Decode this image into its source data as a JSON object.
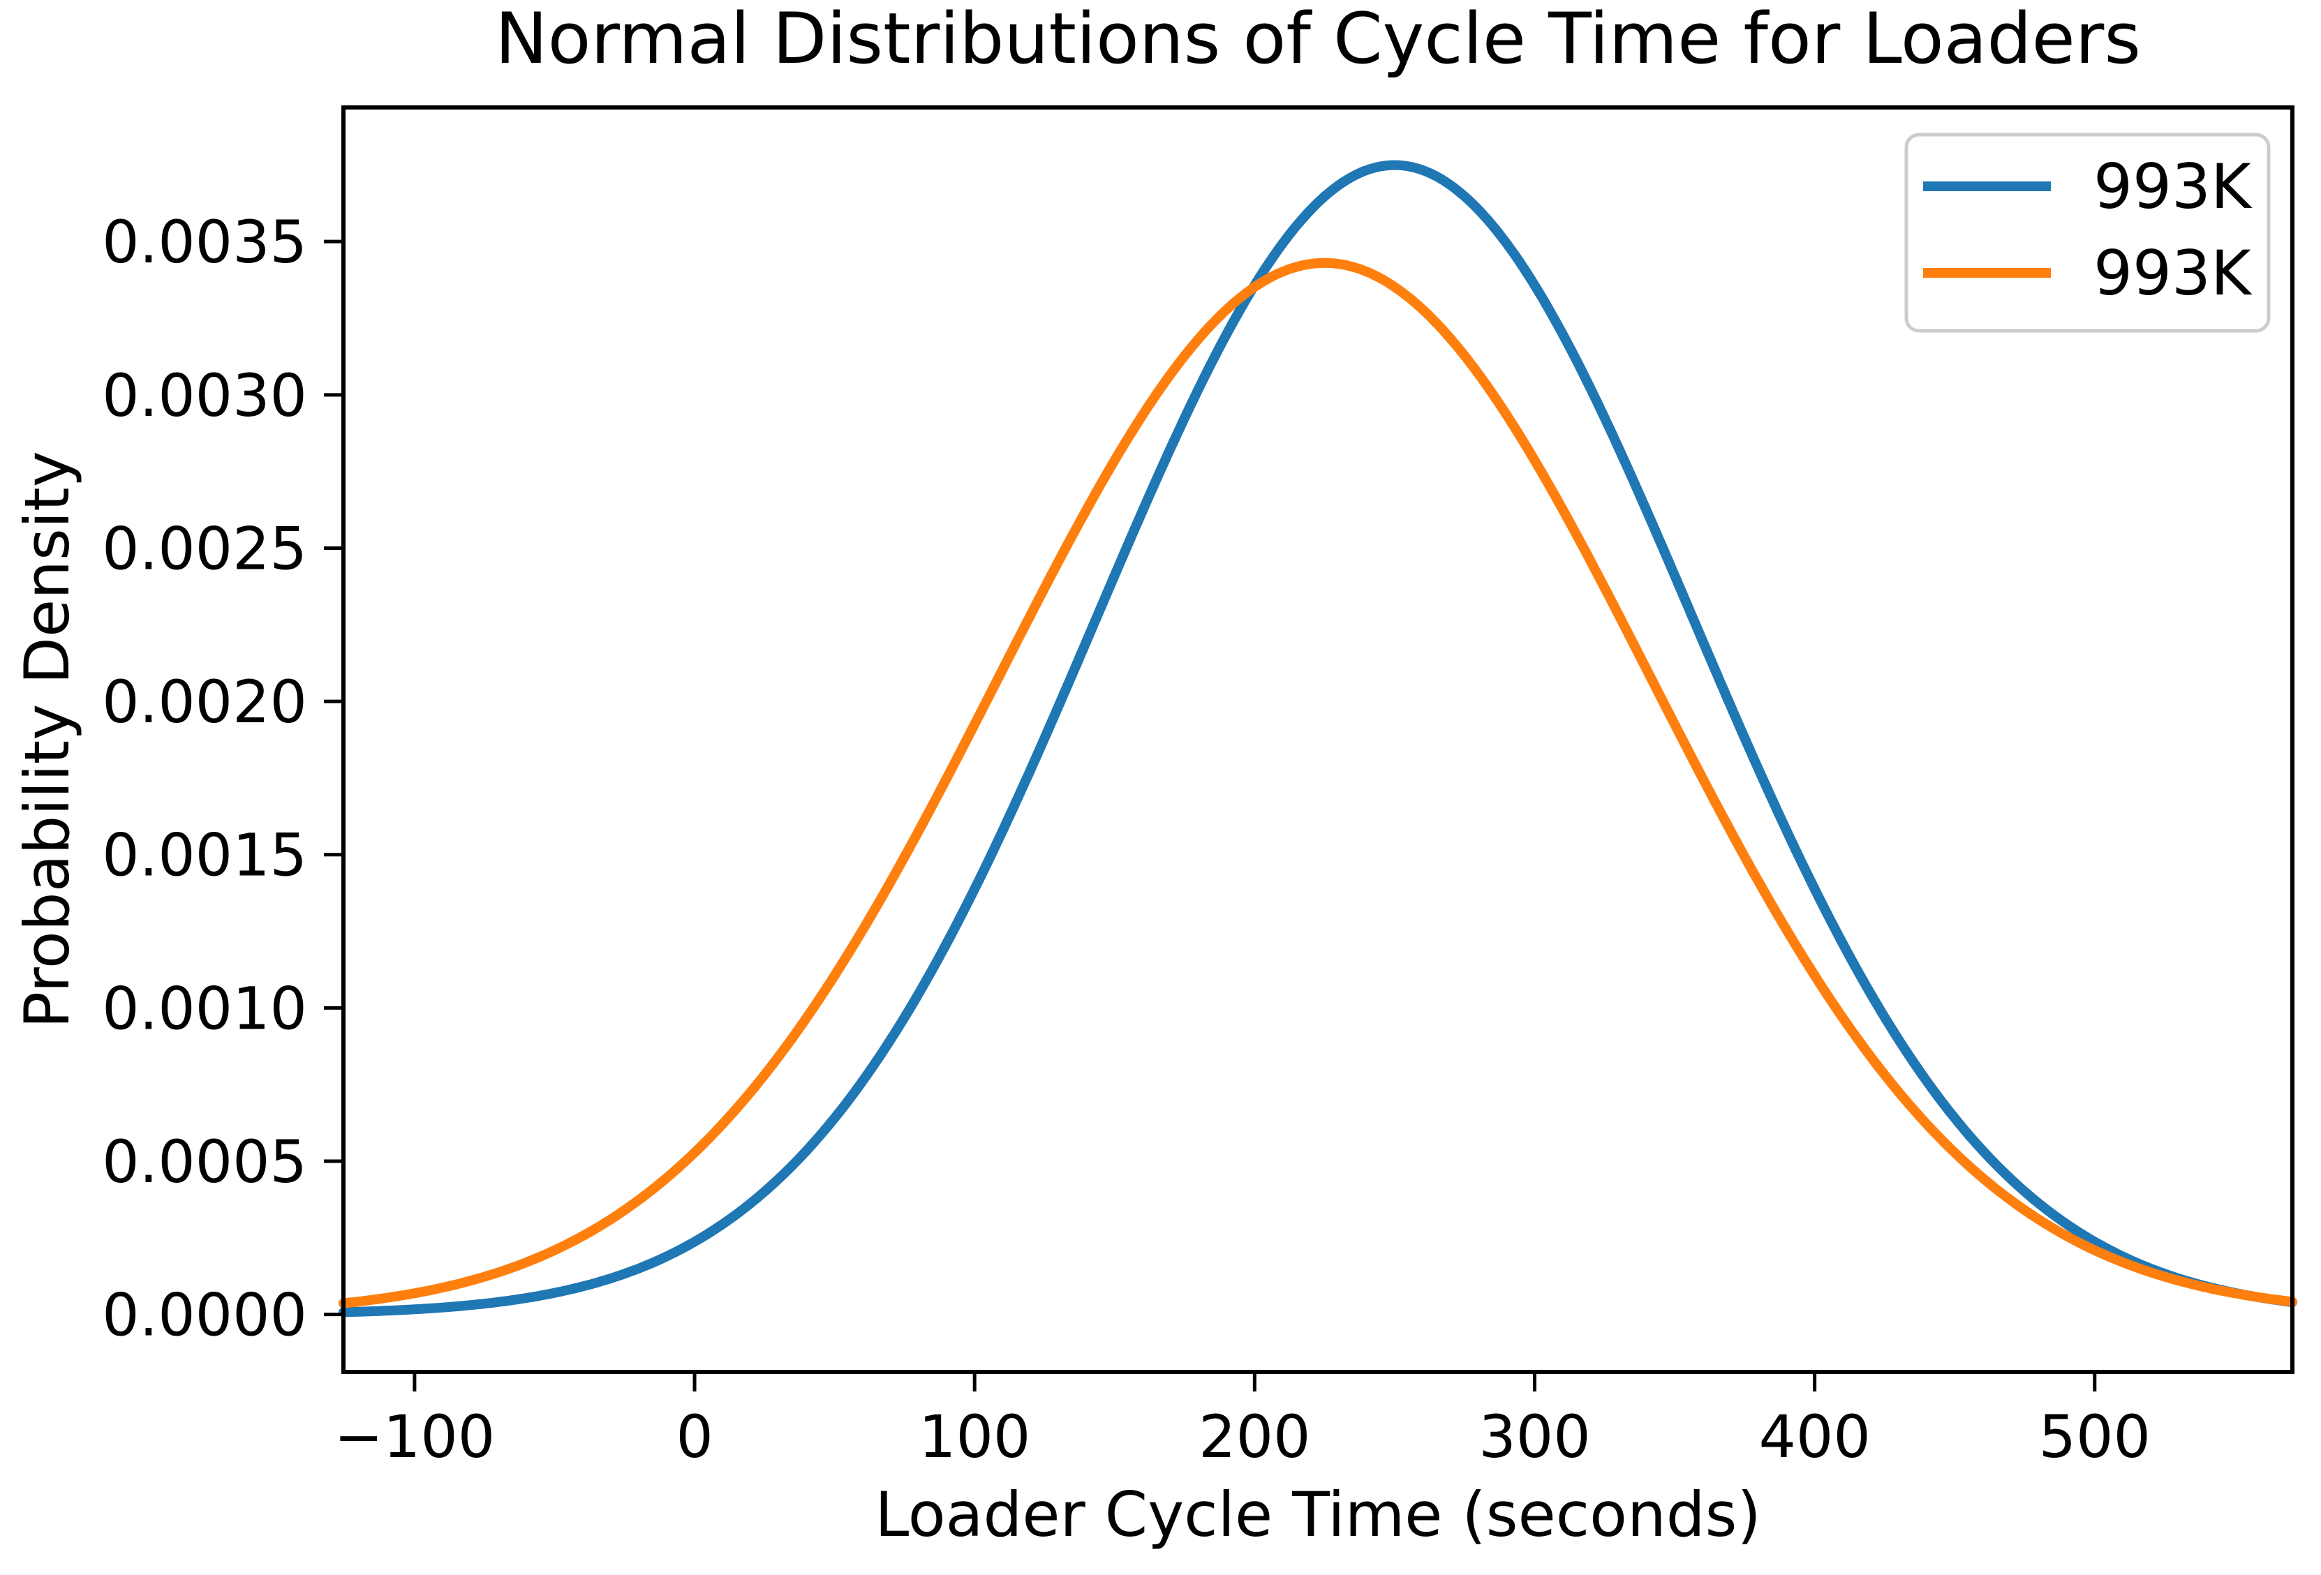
{
  "chart_data": {
    "type": "line",
    "title": "Normal Distributions of Cycle Time for Loaders",
    "xlabel": "Loader Cycle Time (seconds)",
    "ylabel": "Probability Density",
    "xlim": [
      -125.4,
      570.6
    ],
    "ylim": [
      -0.0001875,
      0.0039375
    ],
    "grid": false,
    "background_color": "#ffffff",
    "axis_color": "#000000",
    "x_ticks": [
      {
        "value": -100,
        "label": "−100"
      },
      {
        "value": 0,
        "label": "0"
      },
      {
        "value": 100,
        "label": "100"
      },
      {
        "value": 200,
        "label": "200"
      },
      {
        "value": 300,
        "label": "300"
      },
      {
        "value": 400,
        "label": "400"
      },
      {
        "value": 500,
        "label": "500"
      }
    ],
    "y_ticks": [
      {
        "value": 0.0,
        "label": "0.0000"
      },
      {
        "value": 0.0005,
        "label": "0.0005"
      },
      {
        "value": 0.001,
        "label": "0.0010"
      },
      {
        "value": 0.0015,
        "label": "0.0015"
      },
      {
        "value": 0.002,
        "label": "0.0020"
      },
      {
        "value": 0.0025,
        "label": "0.0025"
      },
      {
        "value": 0.003,
        "label": "0.0030"
      },
      {
        "value": 0.0035,
        "label": "0.0035"
      }
    ],
    "series": [
      {
        "name": "993K",
        "color": "#1f77b4",
        "distribution": "normal",
        "mean": 250,
        "std": 106.4,
        "peak_density": 0.00375
      },
      {
        "name": "993K",
        "color": "#ff7f0e",
        "distribution": "normal",
        "mean": 225,
        "std": 116.3,
        "peak_density": 0.00343
      }
    ],
    "legend": {
      "position": "upper right",
      "edge_color": "#cccccc",
      "face_color": "#ffffff",
      "entries": [
        "993K",
        "993K"
      ]
    }
  }
}
